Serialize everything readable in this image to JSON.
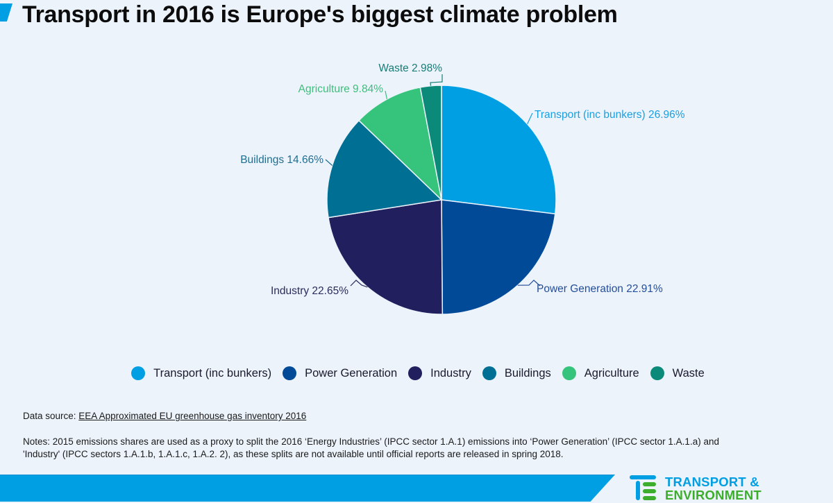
{
  "header": {
    "title": "Transport in 2016 is Europe's biggest climate problem"
  },
  "chart_data": {
    "type": "pie",
    "title": "Transport in 2016 is Europe's biggest climate problem",
    "start_angle_deg": 0,
    "direction": "clockwise",
    "unit": "%",
    "slices": [
      {
        "name": "Transport (inc bunkers)",
        "value": 26.96,
        "color": "#009fe3",
        "label": "Transport (inc bunkers) 26.96%",
        "label_color": "#1a9fe0"
      },
      {
        "name": "Power Generation",
        "value": 22.91,
        "color": "#004a98",
        "label": "Power Generation 22.91%",
        "label_color": "#254e9a"
      },
      {
        "name": "Industry",
        "value": 22.65,
        "color": "#221f5e",
        "label": "Industry 22.65%",
        "label_color": "#2b2c5c"
      },
      {
        "name": "Buildings",
        "value": 14.66,
        "color": "#006f94",
        "label": "Buildings 14.66%",
        "label_color": "#1f6e92"
      },
      {
        "name": "Agriculture",
        "value": 9.84,
        "color": "#36c47c",
        "label": "Agriculture 9.84%",
        "label_color": "#3fbd7c"
      },
      {
        "name": "Waste",
        "value": 2.98,
        "color": "#0b8a7a",
        "label": "Waste 2.98%",
        "label_color": "#167d77"
      }
    ],
    "legend": {
      "placement": "bottom-center",
      "entries": [
        "Transport (inc bunkers)",
        "Power Generation",
        "Industry",
        "Buildings",
        "Agriculture",
        "Waste"
      ]
    }
  },
  "footer": {
    "source_prefix": "Data source: ",
    "source_link": "EEA Approximated EU greenhouse gas inventory 2016",
    "notes_line1": "Notes:  2015 emissions shares are used as a proxy to split the 2016 ‘Energy Industries’ (IPCC sector 1.A.1) emissions into ‘Power Generation’ (IPCC sector 1.A.1.a) and",
    "notes_line2": "'Industry' (IPCC sectors 1.A.1.b, 1.A.1.c, 1.A.2. 2), as these splits are not available until official reports are released in spring 2018."
  },
  "brand": {
    "logo_line1": "TRANSPORT &",
    "logo_line2": "ENVIRONMENT",
    "primary_color": "#009fe3",
    "secondary_color": "#3dae2b"
  }
}
